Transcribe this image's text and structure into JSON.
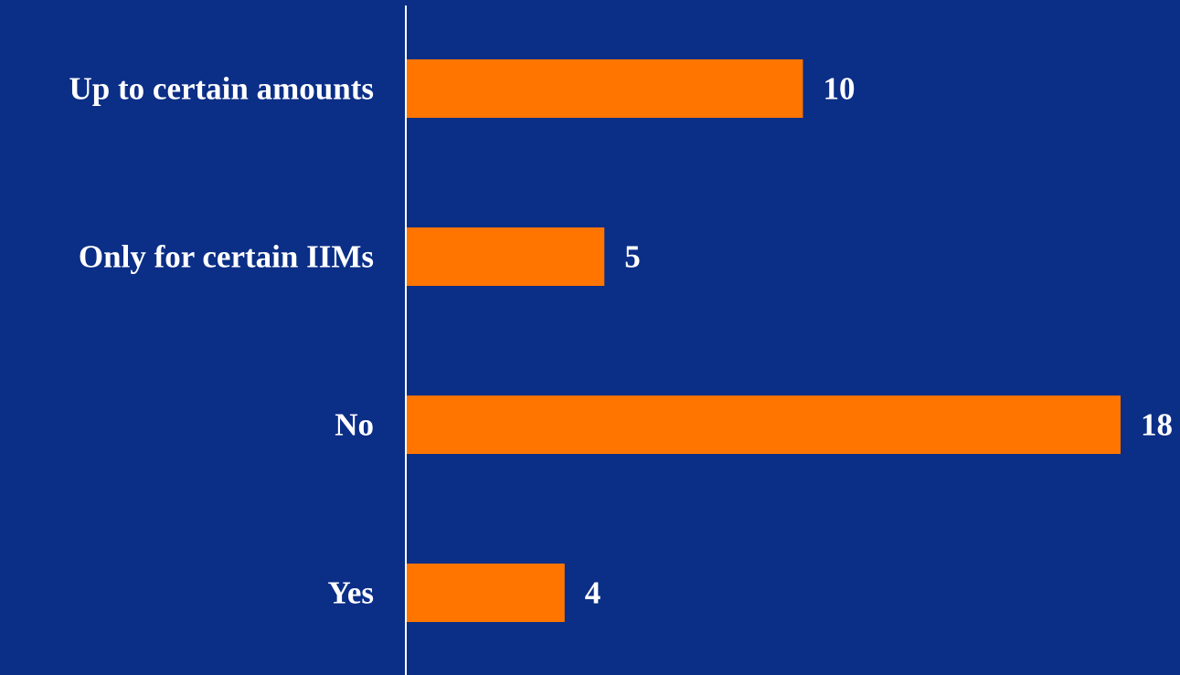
{
  "chart_data": {
    "type": "bar",
    "orientation": "horizontal",
    "categories": [
      "Up to certain amounts",
      "Only for certain IIMs",
      "No",
      "Yes"
    ],
    "values": [
      10,
      5,
      18,
      4
    ],
    "data_labels": [
      "10",
      "5",
      "18",
      "4"
    ],
    "title": "",
    "xlabel": "",
    "ylabel": "",
    "xlim": [
      0,
      18
    ],
    "grid": false,
    "legend": "none"
  },
  "colors": {
    "background": "#0b2e86",
    "bar": "#ff7500",
    "axis": "#ffffff",
    "text": "#ffffff"
  }
}
